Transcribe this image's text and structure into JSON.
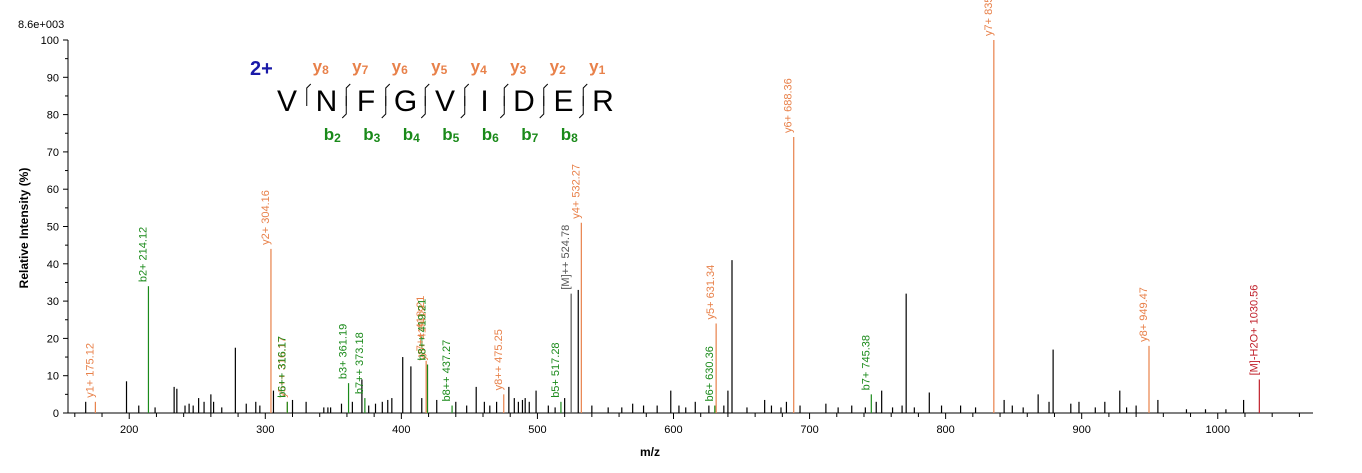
{
  "chart_data": {
    "type": "bar",
    "title": "",
    "xlabel": "m/z",
    "ylabel": "Relative   Intensity (%)",
    "scale_label": "8.6e+003",
    "xlim": [
      155,
      1070
    ],
    "ylim": [
      0,
      100
    ],
    "x_ticks": [
      200,
      300,
      400,
      500,
      600,
      700,
      800,
      900,
      1000
    ],
    "y_ticks": [
      0,
      10,
      20,
      30,
      40,
      50,
      60,
      70,
      80,
      90,
      100
    ],
    "grid": false,
    "colors": {
      "y": "#e8814a",
      "b": "#1a8a1a",
      "precursor": "#555555",
      "loss": "#c0202a",
      "unannotated": "#000000",
      "charge": "#1a1aa8"
    },
    "sequence": {
      "charge": "2+",
      "residues": [
        "V",
        "N",
        "F",
        "G",
        "V",
        "I",
        "D",
        "E",
        "R"
      ],
      "y_ions": [
        {
          "label": "y",
          "sub": "8"
        },
        {
          "label": "y",
          "sub": "7"
        },
        {
          "label": "y",
          "sub": "6"
        },
        {
          "label": "y",
          "sub": "5"
        },
        {
          "label": "y",
          "sub": "4"
        },
        {
          "label": "y",
          "sub": "3"
        },
        {
          "label": "y",
          "sub": "2"
        },
        {
          "label": "y",
          "sub": "1"
        }
      ],
      "b_ions": [
        {
          "label": "b",
          "sub": "2"
        },
        {
          "label": "b",
          "sub": "3"
        },
        {
          "label": "b",
          "sub": "4"
        },
        {
          "label": "b",
          "sub": "5"
        },
        {
          "label": "b",
          "sub": "6"
        },
        {
          "label": "b",
          "sub": "7"
        },
        {
          "label": "b",
          "sub": "8"
        }
      ]
    },
    "annotated_peaks": [
      {
        "mz": 175.12,
        "intensity": 3,
        "type": "y",
        "label": "y1+ 175.12"
      },
      {
        "mz": 214.12,
        "intensity": 34,
        "type": "b",
        "label": "b2+ 214.12"
      },
      {
        "mz": 304.16,
        "intensity": 44,
        "type": "y",
        "label": "y2+ 304.16"
      },
      {
        "mz": 316.17,
        "intensity": 3,
        "type": "y",
        "label": "y5++ 316.17"
      },
      {
        "mz": 316.17,
        "intensity": 3,
        "type": "b",
        "label": "b6++ 316.17"
      },
      {
        "mz": 361.19,
        "intensity": 8,
        "type": "b",
        "label": "b3+ 361.19"
      },
      {
        "mz": 373.18,
        "intensity": 4,
        "type": "b",
        "label": "b7++ 373.18"
      },
      {
        "mz": 418.21,
        "intensity": 14,
        "type": "y",
        "label": "y7++ 418.21"
      },
      {
        "mz": 419.19,
        "intensity": 13,
        "type": "y",
        "label": "y3+ 419.19"
      },
      {
        "mz": 419.21,
        "intensity": 13,
        "type": "b",
        "label": "b8++ 419.21"
      },
      {
        "mz": 437.27,
        "intensity": 2,
        "type": "b",
        "label": "b8++ 437.27"
      },
      {
        "mz": 475.25,
        "intensity": 5,
        "type": "y",
        "label": "y8++ 475.25"
      },
      {
        "mz": 517.28,
        "intensity": 3,
        "type": "b",
        "label": "b5+ 517.28"
      },
      {
        "mz": 524.78,
        "intensity": 32,
        "type": "precursor",
        "label": "[M]++ 524.78"
      },
      {
        "mz": 532.27,
        "intensity": 51,
        "type": "y",
        "label": "y4+ 532.27"
      },
      {
        "mz": 630.36,
        "intensity": 2,
        "type": "b",
        "label": "b6+ 630.36"
      },
      {
        "mz": 631.34,
        "intensity": 24,
        "type": "y",
        "label": "y5+ 631.34"
      },
      {
        "mz": 688.36,
        "intensity": 74,
        "type": "y",
        "label": "y6+ 688.36"
      },
      {
        "mz": 745.38,
        "intensity": 5,
        "type": "b",
        "label": "b7+ 745.38"
      },
      {
        "mz": 835.43,
        "intensity": 100,
        "type": "y",
        "label": "y7+ 835.43"
      },
      {
        "mz": 949.47,
        "intensity": 18,
        "type": "y",
        "label": "y8+ 949.47"
      },
      {
        "mz": 1030.56,
        "intensity": 9,
        "type": "loss",
        "label": "[M]-H2O+ 1030.56"
      }
    ],
    "unannotated_peaks": [
      {
        "mz": 168,
        "intensity": 3
      },
      {
        "mz": 198,
        "intensity": 8.5
      },
      {
        "mz": 207,
        "intensity": 2
      },
      {
        "mz": 219,
        "intensity": 1.5
      },
      {
        "mz": 233,
        "intensity": 7
      },
      {
        "mz": 235,
        "intensity": 6.5
      },
      {
        "mz": 241,
        "intensity": 2
      },
      {
        "mz": 244,
        "intensity": 2.5
      },
      {
        "mz": 247,
        "intensity": 2
      },
      {
        "mz": 251,
        "intensity": 4
      },
      {
        "mz": 255,
        "intensity": 3
      },
      {
        "mz": 260,
        "intensity": 5
      },
      {
        "mz": 262,
        "intensity": 3
      },
      {
        "mz": 268,
        "intensity": 1.5
      },
      {
        "mz": 278,
        "intensity": 17.5
      },
      {
        "mz": 286,
        "intensity": 2.5
      },
      {
        "mz": 293,
        "intensity": 3
      },
      {
        "mz": 296,
        "intensity": 2
      },
      {
        "mz": 306,
        "intensity": 6
      },
      {
        "mz": 320,
        "intensity": 3.5
      },
      {
        "mz": 330,
        "intensity": 3
      },
      {
        "mz": 343,
        "intensity": 1.5
      },
      {
        "mz": 346,
        "intensity": 1.5
      },
      {
        "mz": 348,
        "intensity": 1.5
      },
      {
        "mz": 356,
        "intensity": 2.5
      },
      {
        "mz": 364,
        "intensity": 3
      },
      {
        "mz": 371,
        "intensity": 9
      },
      {
        "mz": 376,
        "intensity": 2
      },
      {
        "mz": 381,
        "intensity": 2.5
      },
      {
        "mz": 386,
        "intensity": 3
      },
      {
        "mz": 390,
        "intensity": 3.5
      },
      {
        "mz": 393,
        "intensity": 4
      },
      {
        "mz": 401,
        "intensity": 15
      },
      {
        "mz": 407,
        "intensity": 12.5
      },
      {
        "mz": 415,
        "intensity": 4
      },
      {
        "mz": 426,
        "intensity": 3.5
      },
      {
        "mz": 440,
        "intensity": 3
      },
      {
        "mz": 448,
        "intensity": 2
      },
      {
        "mz": 455,
        "intensity": 7
      },
      {
        "mz": 461,
        "intensity": 3
      },
      {
        "mz": 465,
        "intensity": 2
      },
      {
        "mz": 470,
        "intensity": 3
      },
      {
        "mz": 479,
        "intensity": 7
      },
      {
        "mz": 483,
        "intensity": 4
      },
      {
        "mz": 486,
        "intensity": 3
      },
      {
        "mz": 489,
        "intensity": 3.5
      },
      {
        "mz": 491,
        "intensity": 4
      },
      {
        "mz": 494,
        "intensity": 3
      },
      {
        "mz": 499,
        "intensity": 6
      },
      {
        "mz": 508,
        "intensity": 2
      },
      {
        "mz": 513,
        "intensity": 1.5
      },
      {
        "mz": 520,
        "intensity": 4
      },
      {
        "mz": 530,
        "intensity": 33
      },
      {
        "mz": 540,
        "intensity": 2
      },
      {
        "mz": 552,
        "intensity": 1.5
      },
      {
        "mz": 562,
        "intensity": 1.5
      },
      {
        "mz": 570,
        "intensity": 2.5
      },
      {
        "mz": 578,
        "intensity": 2
      },
      {
        "mz": 588,
        "intensity": 2
      },
      {
        "mz": 598,
        "intensity": 6
      },
      {
        "mz": 604,
        "intensity": 2
      },
      {
        "mz": 609,
        "intensity": 1.5
      },
      {
        "mz": 616,
        "intensity": 3
      },
      {
        "mz": 626,
        "intensity": 2
      },
      {
        "mz": 637,
        "intensity": 2
      },
      {
        "mz": 640,
        "intensity": 6
      },
      {
        "mz": 643,
        "intensity": 41
      },
      {
        "mz": 654,
        "intensity": 1.5
      },
      {
        "mz": 667,
        "intensity": 3.5
      },
      {
        "mz": 672,
        "intensity": 2
      },
      {
        "mz": 679,
        "intensity": 1.5
      },
      {
        "mz": 683,
        "intensity": 3
      },
      {
        "mz": 693,
        "intensity": 2
      },
      {
        "mz": 712,
        "intensity": 2.5
      },
      {
        "mz": 721,
        "intensity": 1.5
      },
      {
        "mz": 731,
        "intensity": 2
      },
      {
        "mz": 741,
        "intensity": 1.5
      },
      {
        "mz": 749,
        "intensity": 3
      },
      {
        "mz": 753,
        "intensity": 6
      },
      {
        "mz": 761,
        "intensity": 1.5
      },
      {
        "mz": 768,
        "intensity": 2
      },
      {
        "mz": 771,
        "intensity": 32
      },
      {
        "mz": 777,
        "intensity": 1.5
      },
      {
        "mz": 788,
        "intensity": 5.5
      },
      {
        "mz": 797,
        "intensity": 2
      },
      {
        "mz": 811,
        "intensity": 2
      },
      {
        "mz": 822,
        "intensity": 1.5
      },
      {
        "mz": 843,
        "intensity": 3.5
      },
      {
        "mz": 849,
        "intensity": 2
      },
      {
        "mz": 857,
        "intensity": 1.5
      },
      {
        "mz": 868,
        "intensity": 5
      },
      {
        "mz": 876,
        "intensity": 3
      },
      {
        "mz": 879,
        "intensity": 17
      },
      {
        "mz": 892,
        "intensity": 2.5
      },
      {
        "mz": 898,
        "intensity": 3
      },
      {
        "mz": 910,
        "intensity": 1.5
      },
      {
        "mz": 917,
        "intensity": 3
      },
      {
        "mz": 928,
        "intensity": 6
      },
      {
        "mz": 933,
        "intensity": 1.5
      },
      {
        "mz": 940,
        "intensity": 2
      },
      {
        "mz": 956,
        "intensity": 3.5
      },
      {
        "mz": 977,
        "intensity": 1
      },
      {
        "mz": 991,
        "intensity": 1
      },
      {
        "mz": 1006,
        "intensity": 1
      },
      {
        "mz": 1019,
        "intensity": 3.5
      }
    ]
  }
}
